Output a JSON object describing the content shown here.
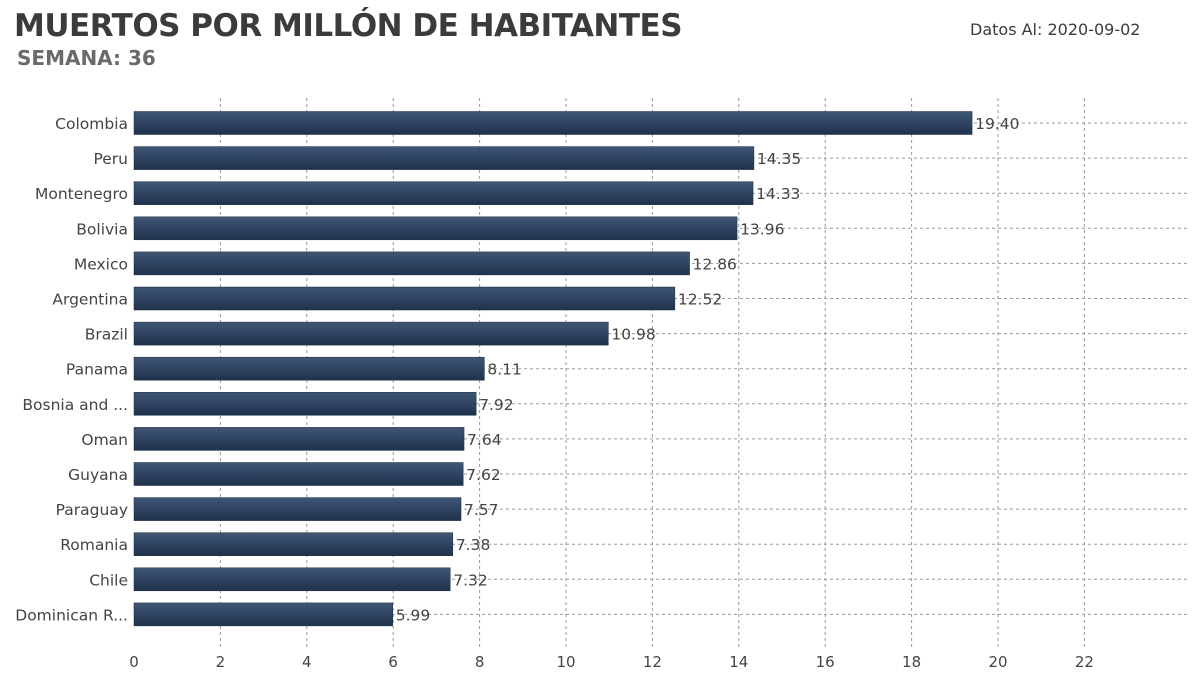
{
  "header": {
    "title": "MUERTOS POR MILLÓN DE HABITANTES",
    "subtitle": "SEMANA: 36",
    "date_label": "Datos Al:",
    "date_value": "2020-09-02"
  },
  "colors": {
    "bar_top": "#3f5676",
    "bar_bottom": "#1f324c",
    "grid": "#9a9a9a",
    "text": "#444444"
  },
  "chart_data": {
    "type": "bar",
    "orientation": "horizontal",
    "categories": [
      "Colombia",
      "Peru",
      "Montenegro",
      "Bolivia",
      "Mexico",
      "Argentina",
      "Brazil",
      "Panama",
      "Bosnia and ...",
      "Oman",
      "Guyana",
      "Paraguay",
      "Romania",
      "Chile",
      "Dominican R..."
    ],
    "values": [
      19.4,
      14.35,
      14.33,
      13.96,
      12.86,
      12.52,
      10.98,
      8.11,
      7.92,
      7.64,
      7.62,
      7.57,
      7.38,
      7.32,
      5.99
    ],
    "value_labels": [
      "19.40",
      "14.35",
      "14.33",
      "13.96",
      "12.86",
      "12.52",
      "10.98",
      "8.11",
      "7.92",
      "7.64",
      "7.62",
      "7.57",
      "7.38",
      "7.32",
      "5.99"
    ],
    "x_ticks": [
      "0",
      "2",
      "4",
      "6",
      "8",
      "10",
      "12",
      "14",
      "16",
      "18",
      "20",
      "22"
    ],
    "xlim": [
      0,
      24
    ],
    "title": "MUERTOS POR MILLÓN DE HABITANTES",
    "xlabel": "",
    "ylabel": "",
    "grid": true
  }
}
